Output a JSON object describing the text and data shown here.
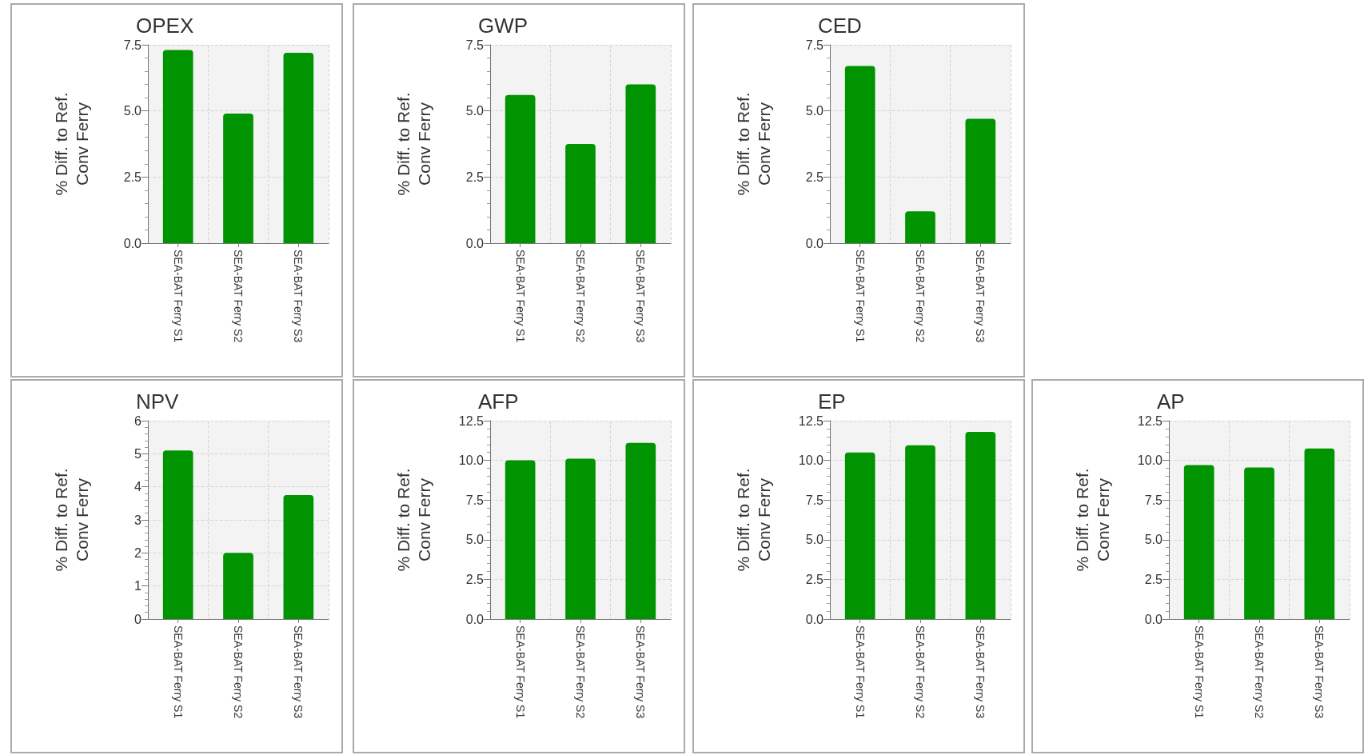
{
  "chart_data": [
    {
      "type": "bar",
      "title": "OPEX",
      "ylabel": "% Diff. to Ref.\nConv Ferry",
      "categories": [
        "SEA-BAT Ferry S1",
        "SEA-BAT Ferry S2",
        "SEA-BAT Ferry S3"
      ],
      "values": [
        7.3,
        4.9,
        7.2
      ],
      "color": "#009400",
      "ylim": [
        0,
        7.5
      ],
      "yticks": [
        {
          "value": 0,
          "label": "0.0"
        },
        2.5,
        {
          "value": 5,
          "label": "5.0"
        },
        7.5
      ],
      "grid": true
    },
    {
      "type": "bar",
      "title": "GWP",
      "ylabel": "% Diff. to Ref.\nConv Ferry",
      "categories": [
        "SEA-BAT Ferry S1",
        "SEA-BAT Ferry S2",
        "SEA-BAT Ferry S3"
      ],
      "values": [
        5.6,
        3.75,
        6.0
      ],
      "color": "#009400",
      "ylim": [
        0,
        7.5
      ],
      "yticks": [
        {
          "value": 0,
          "label": "0.0"
        },
        2.5,
        {
          "value": 5,
          "label": "5.0"
        },
        7.5
      ],
      "grid": true
    },
    {
      "type": "bar",
      "title": "CED",
      "ylabel": "% Diff. to Ref.\nConv Ferry",
      "categories": [
        "SEA-BAT Ferry S1",
        "SEA-BAT Ferry S2",
        "SEA-BAT Ferry S3"
      ],
      "values": [
        6.7,
        1.2,
        4.7
      ],
      "color": "#009400",
      "ylim": [
        0,
        7.5
      ],
      "yticks": [
        {
          "value": 0,
          "label": "0.0"
        },
        2.5,
        {
          "value": 5,
          "label": "5.0"
        },
        7.5
      ],
      "grid": true
    },
    {
      "type": "bar",
      "title": "NPV",
      "ylabel": "% Diff. to Ref.\nConv Ferry",
      "categories": [
        "SEA-BAT Ferry S1",
        "SEA-BAT Ferry S2",
        "SEA-BAT Ferry S3"
      ],
      "values": [
        5.1,
        2.0,
        3.75
      ],
      "color": "#009400",
      "ylim": [
        0,
        6
      ],
      "yticks": [
        0,
        1,
        2,
        3,
        4,
        5,
        6
      ],
      "grid": true
    },
    {
      "type": "bar",
      "title": "AFP",
      "ylabel": "% Diff. to Ref.\nConv Ferry",
      "categories": [
        "SEA-BAT Ferry S1",
        "SEA-BAT Ferry S2",
        "SEA-BAT Ferry S3"
      ],
      "values": [
        10.0,
        10.1,
        11.1
      ],
      "color": "#009400",
      "ylim": [
        0,
        12.5
      ],
      "yticks": [
        {
          "value": 0,
          "label": "0.0"
        },
        2.5,
        {
          "value": 5,
          "label": "5.0"
        },
        7.5,
        {
          "value": 10,
          "label": "10.0"
        },
        12.5
      ],
      "grid": true
    },
    {
      "type": "bar",
      "title": "EP",
      "ylabel": "% Diff. to Ref.\nConv Ferry",
      "categories": [
        "SEA-BAT Ferry S1",
        "SEA-BAT Ferry S2",
        "SEA-BAT Ferry S3"
      ],
      "values": [
        10.5,
        10.95,
        11.8
      ],
      "color": "#009400",
      "ylim": [
        0,
        12.5
      ],
      "yticks": [
        {
          "value": 0,
          "label": "0.0"
        },
        2.5,
        {
          "value": 5,
          "label": "5.0"
        },
        7.5,
        {
          "value": 10,
          "label": "10.0"
        },
        12.5
      ],
      "grid": true
    },
    {
      "type": "bar",
      "title": "AP",
      "ylabel": "% Diff. to Ref.\nConv Ferry",
      "categories": [
        "SEA-BAT Ferry S1",
        "SEA-BAT Ferry S2",
        "SEA-BAT Ferry S3"
      ],
      "values": [
        9.7,
        9.55,
        10.75
      ],
      "color": "#009400",
      "ylim": [
        0,
        12.5
      ],
      "yticks": [
        {
          "value": 0,
          "label": "0.0"
        },
        2.5,
        {
          "value": 5,
          "label": "5.0"
        },
        7.5,
        {
          "value": 10,
          "label": "10.0"
        },
        12.5
      ],
      "grid": true
    }
  ]
}
